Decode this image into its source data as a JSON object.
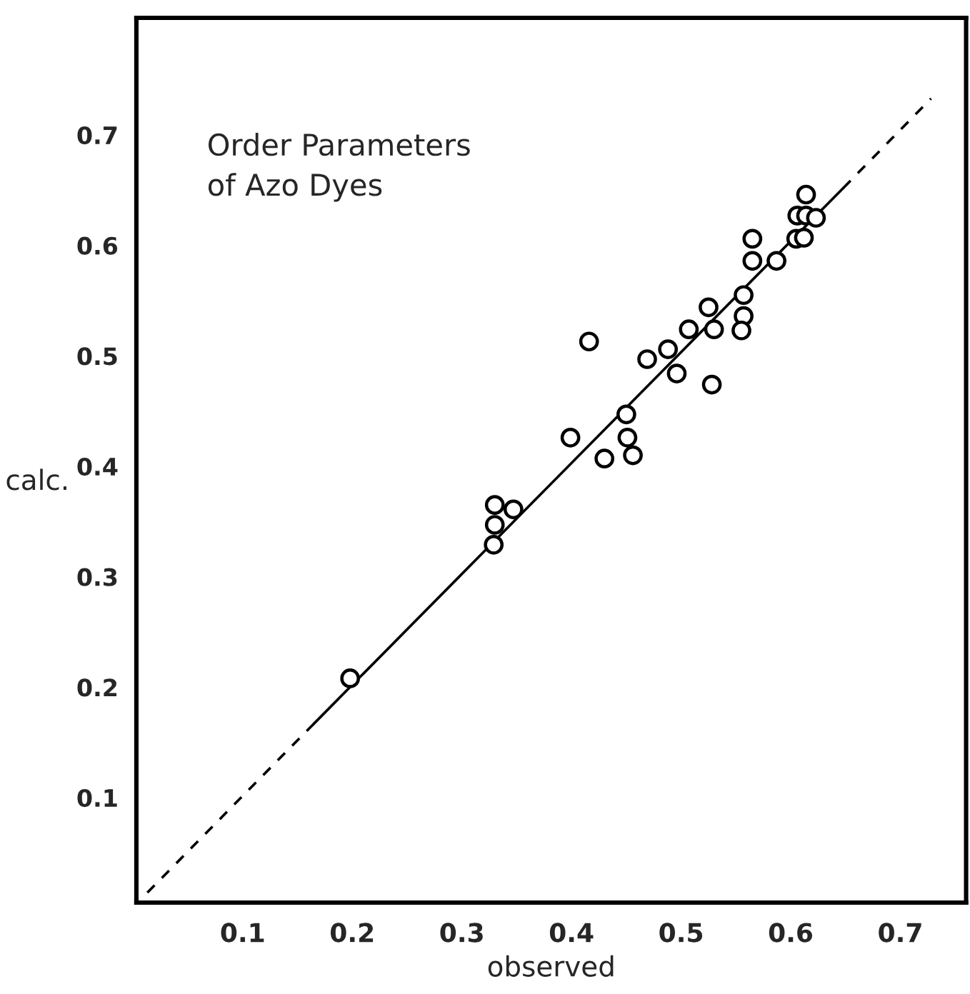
{
  "chart_data": {
    "type": "scatter",
    "xlabel": "observed",
    "ylabel": "calc.",
    "annotations": [
      "Order Parameters\nof Azo Dyes"
    ],
    "series": [
      {
        "color": "#000000",
        "marker": "circle",
        "x": [
          0.198,
          0.329,
          0.33,
          0.33,
          0.347,
          0.399,
          0.416,
          0.43,
          0.45,
          0.451,
          0.456,
          0.469,
          0.488,
          0.496,
          0.507,
          0.525,
          0.53,
          0.528,
          0.557,
          0.557,
          0.555,
          0.565,
          0.565,
          0.587,
          0.605,
          0.612,
          0.606,
          0.614,
          0.623,
          0.614
        ],
        "values": [
          0.208,
          0.329,
          0.347,
          0.365,
          0.361,
          0.426,
          0.513,
          0.407,
          0.447,
          0.426,
          0.41,
          0.497,
          0.506,
          0.484,
          0.524,
          0.544,
          0.524,
          0.474,
          0.555,
          0.536,
          0.523,
          0.606,
          0.586,
          0.586,
          0.606,
          0.607,
          0.627,
          0.627,
          0.625,
          0.646
        ]
      },
      {
        "type": "line",
        "color": "#000000",
        "marker": "none",
        "line_style": "dashed",
        "x": [
          0.013,
          0.165
        ],
        "values": [
          0.014,
          0.167
        ]
      },
      {
        "type": "line",
        "color": "#000000",
        "marker": "none",
        "line_style": "solid",
        "x": [
          0.165,
          0.648
        ],
        "values": [
          0.167,
          0.652
        ]
      },
      {
        "type": "line",
        "color": "#000000",
        "marker": "none",
        "line_style": "dashed",
        "x": [
          0.648,
          0.728
        ],
        "values": [
          0.652,
          0.733
        ]
      }
    ],
    "xlim": [
      0.003,
      0.76
    ],
    "ylim": [
      0.005,
      0.806
    ],
    "xticks": [
      0.1,
      0.2,
      0.3,
      0.4,
      0.5,
      0.6,
      0.7
    ],
    "yticks": [
      0.1,
      0.2,
      0.3,
      0.4,
      0.5,
      0.6,
      0.7
    ],
    "grid": false
  }
}
